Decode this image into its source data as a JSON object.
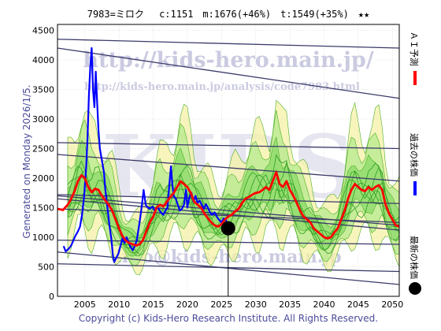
{
  "header": {
    "title": "7983=ミロク　 c:1151　m:1676(+46%)　t:1549(+35%)　★★"
  },
  "side": {
    "generated": "Generated on Monday 2026/1/5."
  },
  "legend": {
    "ai_label": "ＡＩ予測",
    "past_label": "過去の株価",
    "latest_label": "最新の株価",
    "ai_color": "#ff0000",
    "past_color": "#0000ff",
    "latest_color": "#000000"
  },
  "watermark": {
    "url_big": "http://kids-hero.main.jp/",
    "url_small": "http://kids-hero.main.jp/analysis/code7983.html",
    "logo": "KIDS",
    "url_bottom": "info@kids-hero.main.jp"
  },
  "footer": {
    "copyright": "Copyright (c) Kids-Hero Research Institute. All Rights Reserved."
  },
  "chart_data": {
    "type": "line",
    "xlim": [
      2001,
      2051
    ],
    "ylim": [
      0,
      4600
    ],
    "x_ticks": [
      2005,
      2010,
      2015,
      2020,
      2025,
      2030,
      2035,
      2040,
      2045,
      2050
    ],
    "y_ticks": [
      0,
      500,
      1000,
      1500,
      2000,
      2500,
      3000,
      3500,
      4000,
      4500
    ],
    "grid": true,
    "series": [
      {
        "name": "過去の株価",
        "color": "#0000ff",
        "points": [
          [
            2001.9,
            850
          ],
          [
            2002.2,
            760
          ],
          [
            2002.6,
            800
          ],
          [
            2003.0,
            860
          ],
          [
            2003.3,
            940
          ],
          [
            2003.6,
            1020
          ],
          [
            2004.0,
            1100
          ],
          [
            2004.3,
            1180
          ],
          [
            2004.6,
            1380
          ],
          [
            2004.9,
            1700
          ],
          [
            2005.2,
            2200
          ],
          [
            2005.4,
            2700
          ],
          [
            2005.6,
            3400
          ],
          [
            2005.8,
            3900
          ],
          [
            2006.0,
            4200
          ],
          [
            2006.2,
            3500
          ],
          [
            2006.4,
            3200
          ],
          [
            2006.6,
            3800
          ],
          [
            2006.8,
            3300
          ],
          [
            2007.0,
            2800
          ],
          [
            2007.2,
            2500
          ],
          [
            2007.5,
            2300
          ],
          [
            2007.8,
            2100
          ],
          [
            2008.0,
            1800
          ],
          [
            2008.3,
            1500
          ],
          [
            2008.6,
            1200
          ],
          [
            2008.9,
            950
          ],
          [
            2009.1,
            700
          ],
          [
            2009.3,
            580
          ],
          [
            2009.6,
            650
          ],
          [
            2009.9,
            720
          ],
          [
            2010.2,
            850
          ],
          [
            2010.5,
            980
          ],
          [
            2010.8,
            900
          ],
          [
            2011.1,
            1000
          ],
          [
            2011.4,
            920
          ],
          [
            2011.7,
            830
          ],
          [
            2012.0,
            780
          ],
          [
            2012.3,
            850
          ],
          [
            2012.6,
            950
          ],
          [
            2013.0,
            1250
          ],
          [
            2013.3,
            1500
          ],
          [
            2013.6,
            1800
          ],
          [
            2013.9,
            1550
          ],
          [
            2014.2,
            1500
          ],
          [
            2014.5,
            1480
          ],
          [
            2014.9,
            1520
          ],
          [
            2015.2,
            1450
          ],
          [
            2015.5,
            1500
          ],
          [
            2015.8,
            1480
          ],
          [
            2016.1,
            1420
          ],
          [
            2016.5,
            1380
          ],
          [
            2016.8,
            1450
          ],
          [
            2017.1,
            1500
          ],
          [
            2017.4,
            1950
          ],
          [
            2017.6,
            2200
          ],
          [
            2017.8,
            1900
          ],
          [
            2018.0,
            1700
          ],
          [
            2018.3,
            1650
          ],
          [
            2018.6,
            1550
          ],
          [
            2018.9,
            1450
          ],
          [
            2019.2,
            1480
          ],
          [
            2019.5,
            1550
          ],
          [
            2019.8,
            1800
          ],
          [
            2020.0,
            1500
          ],
          [
            2020.3,
            1680
          ],
          [
            2020.6,
            1750
          ],
          [
            2020.9,
            1600
          ],
          [
            2021.2,
            1700
          ],
          [
            2021.5,
            1580
          ],
          [
            2021.8,
            1620
          ],
          [
            2022.1,
            1550
          ],
          [
            2022.4,
            1480
          ],
          [
            2022.7,
            1560
          ],
          [
            2023.0,
            1500
          ],
          [
            2023.3,
            1420
          ],
          [
            2023.6,
            1380
          ],
          [
            2024.0,
            1420
          ],
          [
            2024.3,
            1350
          ],
          [
            2024.6,
            1300
          ],
          [
            2025.0,
            1250
          ],
          [
            2025.3,
            1320
          ],
          [
            2025.6,
            1300
          ],
          [
            2025.8,
            1250
          ],
          [
            2026.0,
            1151
          ]
        ]
      },
      {
        "name": "ＡＩ予測",
        "color": "#ff0000",
        "points": [
          [
            2001.0,
            1480
          ],
          [
            2001.8,
            1460
          ],
          [
            2002.5,
            1550
          ],
          [
            2003.0,
            1650
          ],
          [
            2003.5,
            1780
          ],
          [
            2004.0,
            1950
          ],
          [
            2004.5,
            2050
          ],
          [
            2005.0,
            2000
          ],
          [
            2005.5,
            1850
          ],
          [
            2006.0,
            1760
          ],
          [
            2006.5,
            1820
          ],
          [
            2007.0,
            1800
          ],
          [
            2007.5,
            1700
          ],
          [
            2008.0,
            1620
          ],
          [
            2008.5,
            1550
          ],
          [
            2009.0,
            1450
          ],
          [
            2009.5,
            1300
          ],
          [
            2010.0,
            1150
          ],
          [
            2010.5,
            1020
          ],
          [
            2011.0,
            940
          ],
          [
            2011.5,
            900
          ],
          [
            2012.0,
            880
          ],
          [
            2012.5,
            860
          ],
          [
            2013.0,
            880
          ],
          [
            2013.5,
            950
          ],
          [
            2014.0,
            1100
          ],
          [
            2014.5,
            1250
          ],
          [
            2015.0,
            1350
          ],
          [
            2015.5,
            1500
          ],
          [
            2016.0,
            1550
          ],
          [
            2016.5,
            1520
          ],
          [
            2017.0,
            1600
          ],
          [
            2017.5,
            1680
          ],
          [
            2018.0,
            1750
          ],
          [
            2018.5,
            1850
          ],
          [
            2019.0,
            1950
          ],
          [
            2019.5,
            1900
          ],
          [
            2020.0,
            1850
          ],
          [
            2020.5,
            1750
          ],
          [
            2021.0,
            1600
          ],
          [
            2021.5,
            1550
          ],
          [
            2022.0,
            1500
          ],
          [
            2022.5,
            1400
          ],
          [
            2023.0,
            1320
          ],
          [
            2023.5,
            1250
          ],
          [
            2024.0,
            1200
          ],
          [
            2024.5,
            1180
          ],
          [
            2025.0,
            1220
          ],
          [
            2025.5,
            1300
          ],
          [
            2026.0,
            1350
          ],
          [
            2026.5,
            1380
          ],
          [
            2027.0,
            1440
          ],
          [
            2027.5,
            1480
          ],
          [
            2028.0,
            1580
          ],
          [
            2028.5,
            1650
          ],
          [
            2029.0,
            1680
          ],
          [
            2029.5,
            1720
          ],
          [
            2030.0,
            1750
          ],
          [
            2030.5,
            1760
          ],
          [
            2031.0,
            1800
          ],
          [
            2031.5,
            1850
          ],
          [
            2032.0,
            1800
          ],
          [
            2032.5,
            1950
          ],
          [
            2033.0,
            2100
          ],
          [
            2033.5,
            1900
          ],
          [
            2034.0,
            1850
          ],
          [
            2034.5,
            1950
          ],
          [
            2035.0,
            1800
          ],
          [
            2035.5,
            1700
          ],
          [
            2036.0,
            1580
          ],
          [
            2036.5,
            1450
          ],
          [
            2037.0,
            1350
          ],
          [
            2037.5,
            1300
          ],
          [
            2038.0,
            1250
          ],
          [
            2038.5,
            1150
          ],
          [
            2039.0,
            1100
          ],
          [
            2039.5,
            1050
          ],
          [
            2040.0,
            1000
          ],
          [
            2040.5,
            980
          ],
          [
            2041.0,
            1000
          ],
          [
            2041.5,
            1080
          ],
          [
            2042.0,
            1150
          ],
          [
            2042.5,
            1300
          ],
          [
            2043.0,
            1450
          ],
          [
            2043.5,
            1650
          ],
          [
            2044.0,
            1800
          ],
          [
            2044.5,
            1900
          ],
          [
            2045.0,
            1850
          ],
          [
            2045.5,
            1800
          ],
          [
            2046.0,
            1780
          ],
          [
            2046.5,
            1850
          ],
          [
            2047.0,
            1800
          ],
          [
            2047.5,
            1850
          ],
          [
            2048.0,
            1880
          ],
          [
            2048.5,
            1800
          ],
          [
            2049.0,
            1550
          ],
          [
            2049.5,
            1400
          ],
          [
            2050.0,
            1300
          ],
          [
            2050.5,
            1200
          ],
          [
            2051.0,
            1180
          ]
        ]
      }
    ],
    "latest": {
      "x": 2025.97,
      "y": 1151
    },
    "trend_lines": [
      [
        [
          2001,
          4350
        ],
        [
          2051,
          4200
        ]
      ],
      [
        [
          2001,
          4200
        ],
        [
          2051,
          3350
        ]
      ],
      [
        [
          2001,
          2600
        ],
        [
          2051,
          2500
        ]
      ],
      [
        [
          2001,
          2400
        ],
        [
          2051,
          1950
        ]
      ],
      [
        [
          2001,
          1720
        ],
        [
          2051,
          1570
        ]
      ],
      [
        [
          2001,
          1700
        ],
        [
          2051,
          1200
        ]
      ],
      [
        [
          2001,
          1650
        ],
        [
          2051,
          1120
        ]
      ],
      [
        [
          2001,
          1480
        ],
        [
          2051,
          1250
        ]
      ],
      [
        [
          2001,
          950
        ],
        [
          2051,
          880
        ]
      ],
      [
        [
          2001,
          750
        ],
        [
          2051,
          200
        ]
      ],
      [
        [
          2001,
          550
        ],
        [
          2051,
          420
        ]
      ]
    ]
  }
}
